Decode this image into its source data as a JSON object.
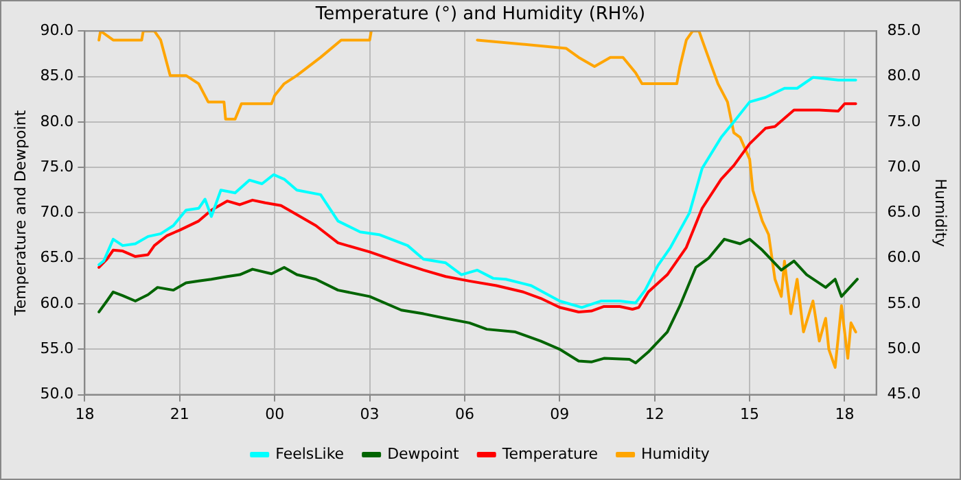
{
  "chart_data": {
    "type": "line",
    "title": "Temperature (°) and Humidity (RH%)",
    "ylabel": "Temperature and Dewpoint",
    "y2label": "Humidity",
    "xlim": [
      "--01-01T18:00",
      "--01-02T19:00"
    ],
    "xticks": [
      {
        "value": "--01-01T18:00",
        "label": "18"
      },
      {
        "value": "--01-01T21:00",
        "label": "21"
      },
      {
        "value": "--01-02T00:00",
        "label": "00"
      },
      {
        "value": "--01-02T03:00",
        "label": "03"
      },
      {
        "value": "--01-02T06:00",
        "label": "06"
      },
      {
        "value": "--01-02T09:00",
        "label": "09"
      },
      {
        "value": "--01-02T12:00",
        "label": "12"
      },
      {
        "value": "--01-02T15:00",
        "label": "15"
      },
      {
        "value": "--01-02T18:00",
        "label": "18"
      }
    ],
    "ylim": [
      50,
      90
    ],
    "yticks": [
      {
        "value": 50,
        "label": "50.0"
      },
      {
        "value": 55,
        "label": "55.0"
      },
      {
        "value": 60,
        "label": "60.0"
      },
      {
        "value": 65,
        "label": "65.0"
      },
      {
        "value": 70,
        "label": "70.0"
      },
      {
        "value": 75,
        "label": "75.0"
      },
      {
        "value": 80,
        "label": "80.0"
      },
      {
        "value": 85,
        "label": "85.0"
      },
      {
        "value": 90,
        "label": "90.0"
      }
    ],
    "y2lim": [
      45,
      85
    ],
    "y2ticks": [
      {
        "value": 45,
        "label": "45.0"
      },
      {
        "value": 50,
        "label": "50.0"
      },
      {
        "value": 55,
        "label": "55.0"
      },
      {
        "value": 60,
        "label": "60.0"
      },
      {
        "value": 65,
        "label": "65.0"
      },
      {
        "value": 70,
        "label": "70.0"
      },
      {
        "value": 75,
        "label": "75.0"
      },
      {
        "value": 80,
        "label": "80.0"
      },
      {
        "value": 85,
        "label": "85.0"
      }
    ],
    "grid": true,
    "legend": "bottom",
    "marker": "none",
    "series": [
      {
        "name": "FeelsLike",
        "color": "#00ffff",
        "x": [
          "--01-01T18:27",
          "--01-01T18:36",
          "--01-01T18:54",
          "--01-01T19:12",
          "--01-01T19:36",
          "--01-01T20:00",
          "--01-01T20:24",
          "--01-01T20:48",
          "--01-01T21:12",
          "--01-01T21:36",
          "--01-01T21:48",
          "--01-01T22:00",
          "--01-01T22:18",
          "--01-01T22:45",
          "--01-01T23:12",
          "--01-01T23:36",
          "--01-01T23:58",
          "--01-02T00:18",
          "--01-02T00:42",
          "--01-02T01:27",
          "--01-02T02:00",
          "--01-02T02:42",
          "--01-02T03:18",
          "--01-02T04:12",
          "--01-02T04:42",
          "--01-02T05:24",
          "--01-02T05:54",
          "--01-02T06:24",
          "--01-02T06:54",
          "--01-02T07:18",
          "--01-02T08:06",
          "--01-02T09:00",
          "--01-02T09:42",
          "--01-02T10:18",
          "--01-02T10:54",
          "--01-02T11:24",
          "--01-02T11:42",
          "--01-02T12:06",
          "--01-02T12:30",
          "--01-02T13:06",
          "--01-02T13:30",
          "--01-02T14:06",
          "--01-02T14:30",
          "--01-02T15:00",
          "--01-02T15:30",
          "--01-02T16:06",
          "--01-02T16:30",
          "--01-02T17:00",
          "--01-02T17:48",
          "--01-02T18:21"
        ],
        "values": [
          64.3,
          64.7,
          67.1,
          66.4,
          66.6,
          67.4,
          67.7,
          68.6,
          70.3,
          70.5,
          71.5,
          69.6,
          72.5,
          72.2,
          73.6,
          73.2,
          74.2,
          73.7,
          72.5,
          72.0,
          69.1,
          67.9,
          67.6,
          66.4,
          64.9,
          64.5,
          63.2,
          63.7,
          62.8,
          62.7,
          62.0,
          60.3,
          59.6,
          60.3,
          60.3,
          60.1,
          61.5,
          64.2,
          66.2,
          70.0,
          74.9,
          78.3,
          80.0,
          82.2,
          82.7,
          83.7,
          83.7,
          84.9,
          84.6,
          84.6
        ]
      },
      {
        "name": "Dewpoint",
        "color": "#006400",
        "x": [
          "--01-01T18:27",
          "--01-01T18:42",
          "--01-01T18:54",
          "--01-01T19:12",
          "--01-01T19:36",
          "--01-01T20:00",
          "--01-01T20:18",
          "--01-01T20:48",
          "--01-01T21:12",
          "--01-01T21:36",
          "--01-01T22:00",
          "--01-01T22:30",
          "--01-01T22:54",
          "--01-01T23:18",
          "--01-01T23:54",
          "--01-02T00:18",
          "--01-02T00:42",
          "--01-02T01:18",
          "--01-02T02:00",
          "--01-02T03:00",
          "--01-02T04:00",
          "--01-02T04:42",
          "--01-02T05:24",
          "--01-02T06:09",
          "--01-02T06:42",
          "--01-02T07:36",
          "--01-02T08:24",
          "--01-02T09:00",
          "--01-02T09:36",
          "--01-02T10:00",
          "--01-02T10:24",
          "--01-02T11:12",
          "--01-02T11:24",
          "--01-02T11:48",
          "--01-02T12:24",
          "--01-02T12:48",
          "--01-02T13:18",
          "--01-02T13:42",
          "--01-02T14:12",
          "--01-02T14:42",
          "--01-02T15:00",
          "--01-02T15:24",
          "--01-02T16:00",
          "--01-02T16:24",
          "--01-02T16:48",
          "--01-02T17:24",
          "--01-02T17:42",
          "--01-02T17:54",
          "--01-02T18:24"
        ],
        "values": [
          59.1,
          60.3,
          61.3,
          60.9,
          60.3,
          61.0,
          61.8,
          61.5,
          62.3,
          62.5,
          62.7,
          63.0,
          63.2,
          63.8,
          63.3,
          64.0,
          63.2,
          62.7,
          61.5,
          60.8,
          59.3,
          58.9,
          58.4,
          57.9,
          57.2,
          56.9,
          55.9,
          55.0,
          53.7,
          53.6,
          54.0,
          53.9,
          53.5,
          54.7,
          56.9,
          59.8,
          64.0,
          65.0,
          67.1,
          66.6,
          67.1,
          65.9,
          63.7,
          64.7,
          63.2,
          61.8,
          62.7,
          60.8,
          62.7
        ]
      },
      {
        "name": "Temperature",
        "color": "#ff0000",
        "x": [
          "--01-01T18:27",
          "--01-01T18:42",
          "--01-01T18:54",
          "--01-01T19:12",
          "--01-01T19:36",
          "--01-01T20:00",
          "--01-01T20:12",
          "--01-01T20:36",
          "--01-01T21:00",
          "--01-01T21:36",
          "--01-01T22:00",
          "--01-01T22:30",
          "--01-01T22:54",
          "--01-01T23:18",
          "--01-01T23:42",
          "--01-02T00:12",
          "--01-02T00:42",
          "--01-02T01:18",
          "--01-02T02:00",
          "--01-02T03:00",
          "--01-02T04:00",
          "--01-02T04:42",
          "--01-02T05:24",
          "--01-02T06:09",
          "--01-02T07:00",
          "--01-02T07:51",
          "--01-02T08:24",
          "--01-02T09:00",
          "--01-02T09:36",
          "--01-02T10:00",
          "--01-02T10:24",
          "--01-02T10:54",
          "--01-02T11:18",
          "--01-02T11:30",
          "--01-02T11:48",
          "--01-02T12:24",
          "--01-02T13:00",
          "--01-02T13:30",
          "--01-02T14:06",
          "--01-02T14:30",
          "--01-02T15:00",
          "--01-02T15:30",
          "--01-02T15:48",
          "--01-02T16:24",
          "--01-02T17:12",
          "--01-02T17:48",
          "--01-02T18:00",
          "--01-02T18:21"
        ],
        "values": [
          64.0,
          64.9,
          65.9,
          65.8,
          65.2,
          65.4,
          66.4,
          67.5,
          68.1,
          69.1,
          70.3,
          71.3,
          70.9,
          71.4,
          71.1,
          70.8,
          69.8,
          68.6,
          66.7,
          65.7,
          64.5,
          63.7,
          63.0,
          62.5,
          62.0,
          61.3,
          60.6,
          59.6,
          59.1,
          59.2,
          59.7,
          59.7,
          59.4,
          59.6,
          61.3,
          63.2,
          66.2,
          70.5,
          73.7,
          75.2,
          77.6,
          79.3,
          79.5,
          81.3,
          81.3,
          81.2,
          82.0,
          82.0
        ]
      },
      {
        "name": "Humidity",
        "color": "#ffa500",
        "axis": "y2",
        "x": [
          "--01-01T18:27",
          "--01-01T18:30",
          "--01-01T18:54",
          "--01-01T19:48",
          "--01-01T19:51",
          "--01-01T20:12",
          "--01-01T20:24",
          "--01-01T20:42",
          "--01-01T21:12",
          "--01-01T21:36",
          "--01-01T21:54",
          "--01-01T22:24",
          "--01-01T22:27",
          "--01-01T22:45",
          "--01-01T22:57",
          "--01-01T23:54",
          "--01-02T00:00",
          "--01-02T00:18",
          "--01-02T00:42",
          "--01-02T01:27",
          "--01-02T02:06",
          "--01-02T03:00",
          "--01-02T03:03",
          "--01-02T05:24",
          "--01-02T06:24",
          "--01-02T09:12",
          "--01-02T09:36",
          "--01-02T10:06",
          "--01-02T10:36",
          "--01-02T11:00",
          "--01-02T11:24",
          "--01-02T11:36",
          "--01-02T12:42",
          "--01-02T12:48",
          "--01-02T13:00",
          "--01-02T13:12",
          "--01-02T13:24",
          "--01-02T13:30",
          "--01-02T13:48",
          "--01-02T14:00",
          "--01-02T14:18",
          "--01-02T14:30",
          "--01-02T14:42",
          "--01-02T15:00",
          "--01-02T15:06",
          "--01-02T15:24",
          "--01-02T15:36",
          "--01-02T15:48",
          "--01-02T16:00",
          "--01-02T16:06",
          "--01-02T16:18",
          "--01-02T16:30",
          "--01-02T16:42",
          "--01-02T17:00",
          "--01-02T17:12",
          "--01-02T17:24",
          "--01-02T17:30",
          "--01-02T17:42",
          "--01-02T17:54",
          "--01-02T18:06",
          "--01-02T18:12",
          "--01-02T18:21"
        ],
        "values": [
          84.0,
          85.0,
          84.0,
          84.0,
          85.0,
          85.0,
          84.0,
          80.1,
          80.1,
          79.2,
          77.2,
          77.2,
          75.3,
          75.3,
          77.0,
          77.0,
          77.9,
          79.2,
          80.1,
          82.1,
          84.0,
          84.0,
          85.0,
          null,
          84.0,
          83.1,
          82.1,
          81.1,
          82.1,
          82.1,
          80.4,
          79.2,
          79.2,
          81.1,
          84.0,
          85.0,
          85.0,
          84.0,
          81.1,
          79.2,
          77.2,
          73.8,
          73.3,
          70.9,
          67.5,
          64.1,
          62.6,
          57.7,
          55.8,
          59.7,
          53.9,
          57.7,
          51.9,
          55.3,
          50.9,
          53.4,
          50.0,
          48.0,
          54.8,
          49.0,
          52.9,
          51.9
        ]
      }
    ]
  }
}
